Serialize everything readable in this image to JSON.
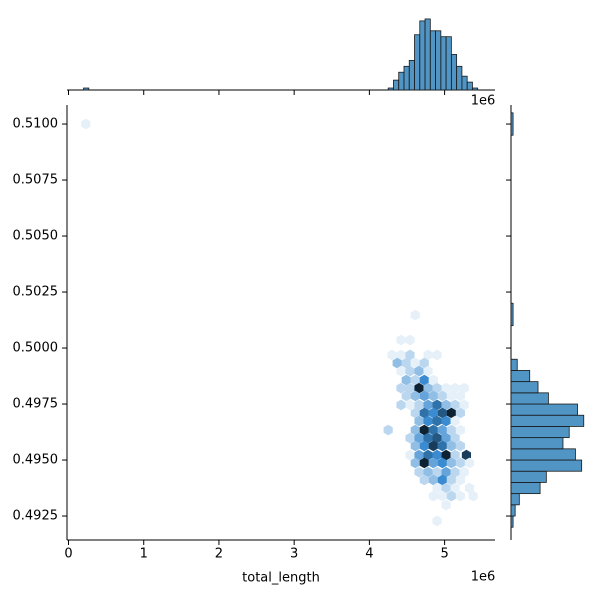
{
  "chart_data": [
    {
      "type": "hexbin",
      "xlabel": "total_length",
      "x_offset_label": "1e6",
      "xlim": [
        -0.02,
        5.67
      ],
      "ylim": [
        0.49143,
        0.51085
      ],
      "xticks": [
        0,
        1,
        2,
        3,
        4,
        5
      ],
      "yticks": [
        0.4925,
        {
          "value": 0.495,
          "label": "0.4950"
        },
        0.4975,
        {
          "value": 0.5,
          "label": "0.5000"
        },
        0.5025,
        {
          "value": 0.505,
          "label": "0.5050"
        },
        0.5075,
        {
          "value": 0.51,
          "label": "0.5100"
        }
      ],
      "colors": [
        "#e6f0f9",
        "#3a8bd0",
        "#0d2233"
      ],
      "x": [
        0.23,
        4.61,
        4.42,
        4.54,
        4.3,
        4.42,
        4.54,
        4.78,
        4.9,
        4.37,
        4.49,
        4.61,
        4.73,
        4.42,
        4.54,
        4.66,
        4.78,
        4.49,
        4.61,
        4.73,
        4.85,
        4.42,
        4.54,
        4.66,
        4.78,
        4.9,
        5.02,
        5.14,
        5.26,
        4.49,
        4.61,
        4.73,
        4.85,
        4.97,
        5.09,
        5.21,
        4.42,
        4.54,
        4.66,
        4.78,
        4.9,
        5.02,
        5.14,
        5.26,
        4.61,
        4.73,
        4.85,
        4.97,
        5.09,
        5.21,
        4.66,
        4.78,
        4.9,
        5.02,
        5.14,
        4.25,
        4.61,
        4.73,
        4.85,
        4.97,
        5.09,
        5.21,
        4.54,
        4.66,
        4.78,
        4.9,
        5.02,
        5.14,
        4.61,
        4.73,
        4.85,
        4.97,
        5.09,
        5.21,
        4.54,
        4.66,
        4.78,
        4.9,
        5.02,
        5.14,
        5.29,
        4.61,
        4.73,
        4.85,
        4.97,
        5.09,
        5.21,
        5.33,
        4.66,
        4.78,
        4.9,
        5.02,
        5.14,
        5.26,
        4.73,
        4.85,
        4.97,
        5.09,
        5.21,
        4.9,
        5.02,
        5.14,
        5.33,
        4.85,
        4.97,
        5.09,
        5.21,
        5.38,
        5.02,
        4.9
      ],
      "y": [
        0.51,
        0.50147,
        0.50036,
        0.50036,
        0.49969,
        0.49969,
        0.49969,
        0.49969,
        0.49969,
        0.49933,
        0.49933,
        0.49933,
        0.49933,
        0.49897,
        0.49897,
        0.49897,
        0.49897,
        0.49857,
        0.49857,
        0.49857,
        0.49857,
        0.49821,
        0.49821,
        0.49821,
        0.49821,
        0.49821,
        0.49821,
        0.49821,
        0.49821,
        0.49786,
        0.49786,
        0.49786,
        0.49786,
        0.49786,
        0.49786,
        0.49786,
        0.49746,
        0.49746,
        0.49746,
        0.49746,
        0.49746,
        0.49746,
        0.49746,
        0.49746,
        0.4971,
        0.4971,
        0.4971,
        0.4971,
        0.4971,
        0.4971,
        0.49674,
        0.49674,
        0.49674,
        0.49674,
        0.49674,
        0.49634,
        0.49634,
        0.49634,
        0.49634,
        0.49634,
        0.49634,
        0.49634,
        0.49598,
        0.49598,
        0.49598,
        0.49598,
        0.49598,
        0.49598,
        0.49563,
        0.49563,
        0.49563,
        0.49563,
        0.49563,
        0.49563,
        0.49522,
        0.49522,
        0.49522,
        0.49522,
        0.49522,
        0.49522,
        0.49522,
        0.49487,
        0.49487,
        0.49487,
        0.49487,
        0.49487,
        0.49487,
        0.49487,
        0.49446,
        0.49446,
        0.49446,
        0.49446,
        0.49446,
        0.49446,
        0.49411,
        0.49411,
        0.49411,
        0.49411,
        0.49411,
        0.49375,
        0.49375,
        0.49375,
        0.49375,
        0.49339,
        0.49339,
        0.49339,
        0.49339,
        0.49339,
        0.49299,
        0.49228
      ],
      "counts": [
        1,
        1,
        1,
        1,
        1,
        1,
        2,
        1,
        1,
        3,
        2,
        1,
        2,
        1,
        2,
        3,
        1,
        3,
        2,
        5,
        1,
        2,
        2,
        9,
        3,
        2,
        1,
        1,
        1,
        2,
        3,
        4,
        3,
        2,
        1,
        1,
        2,
        1,
        2,
        4,
        6,
        3,
        2,
        1,
        2,
        6,
        5,
        7,
        9,
        2,
        3,
        5,
        6,
        5,
        1,
        2,
        3,
        9,
        6,
        4,
        2,
        1,
        2,
        4,
        6,
        7,
        4,
        2,
        3,
        5,
        8,
        6,
        3,
        2,
        1,
        4,
        6,
        5,
        9,
        2,
        8,
        3,
        9,
        4,
        5,
        3,
        2,
        1,
        2,
        3,
        2,
        4,
        2,
        1,
        2,
        3,
        5,
        2,
        1,
        1,
        2,
        1,
        1,
        1,
        1,
        2,
        1,
        1,
        1,
        1
      ]
    },
    {
      "type": "histogram",
      "orientation": "vertical",
      "color": "#1f77b4",
      "x_offset_label": "1e6",
      "xlim": [
        -0.02,
        5.67
      ],
      "countlim": [
        0,
        38
      ],
      "bins": [
        0.2,
        0.27,
        4.25,
        4.32,
        4.39,
        4.46,
        4.53,
        4.6,
        4.67,
        4.74,
        4.81,
        4.88,
        4.95,
        5.02,
        5.09,
        5.16,
        5.23,
        5.3,
        5.37,
        5.44
      ],
      "counts": [
        1,
        0,
        1,
        5,
        9,
        12,
        15,
        28,
        35,
        36,
        30,
        30,
        27,
        27,
        18,
        12,
        7,
        4,
        1
      ]
    },
    {
      "type": "histogram",
      "orientation": "horizontal",
      "color": "#1f77b4",
      "ylim": [
        0.49143,
        0.51085
      ],
      "countlim": [
        0,
        38
      ],
      "bins": [
        0.492,
        0.4925,
        0.493,
        0.4935,
        0.494,
        0.4945,
        0.495,
        0.4955,
        0.496,
        0.4965,
        0.497,
        0.4975,
        0.498,
        0.4985,
        0.499,
        0.4995,
        0.5,
        0.501,
        0.502,
        0.5095,
        0.5105
      ],
      "counts": [
        1,
        2,
        4,
        14,
        17,
        34,
        31,
        25,
        28,
        35,
        32,
        18,
        13,
        9,
        3,
        0,
        0,
        1,
        0,
        1
      ]
    }
  ]
}
